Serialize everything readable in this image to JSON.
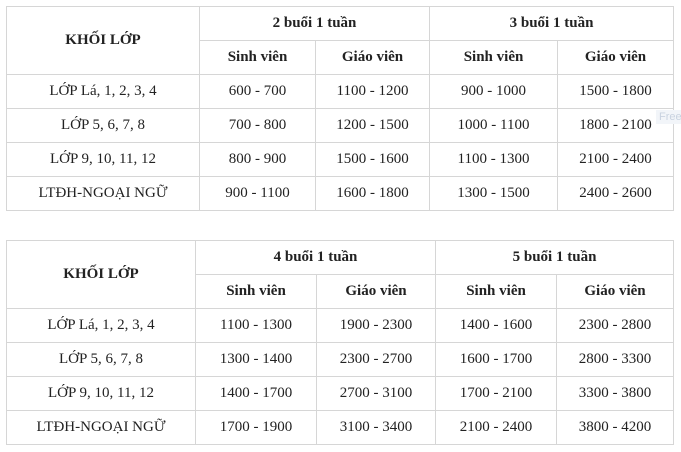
{
  "watermark": "Free",
  "tables": [
    {
      "grade_header": "KHỐI LỚP",
      "groups": [
        "2 buổi 1 tuần",
        "3 buổi 1 tuần"
      ],
      "sub_headers": [
        "Sinh viên",
        "Giáo viên",
        "Sinh viên",
        "Giáo viên"
      ],
      "rows": [
        [
          "LỚP Lá, 1, 2, 3, 4",
          "600 - 700",
          "1100 - 1200",
          "900 - 1000",
          "1500 - 1800"
        ],
        [
          "LỚP 5, 6, 7, 8",
          "700 - 800",
          "1200 - 1500",
          "1000 - 1100",
          "1800 - 2100"
        ],
        [
          "LỚP 9, 10, 11, 12",
          "800 - 900",
          "1500 - 1600",
          "1100 - 1300",
          "2100 - 2400"
        ],
        [
          "LTĐH-NGOẠI NGỮ",
          "900 - 1100",
          "1600 - 1800",
          "1300 - 1500",
          "2400 - 2600"
        ]
      ]
    },
    {
      "grade_header": "KHỐI LỚP",
      "groups": [
        "4 buổi 1 tuần",
        "5 buổi 1 tuần"
      ],
      "sub_headers": [
        "Sinh viên",
        "Giáo viên",
        "Sinh viên",
        "Giáo viên"
      ],
      "rows": [
        [
          "LỚP Lá, 1, 2, 3, 4",
          "1100 - 1300",
          "1900 - 2300",
          "1400 - 1600",
          "2300 - 2800"
        ],
        [
          "LỚP 5, 6, 7, 8",
          "1300 - 1400",
          "2300 - 2700",
          "1600 - 1700",
          "2800 - 3300"
        ],
        [
          "LỚP 9, 10, 11, 12",
          "1400 - 1700",
          "2700 - 3100",
          "1700 - 2100",
          "3300 - 3800"
        ],
        [
          "LTĐH-NGOẠI NGỮ",
          "1700 - 1900",
          "3100 - 3400",
          "2100 - 2400",
          "3800 - 4200"
        ]
      ]
    }
  ]
}
